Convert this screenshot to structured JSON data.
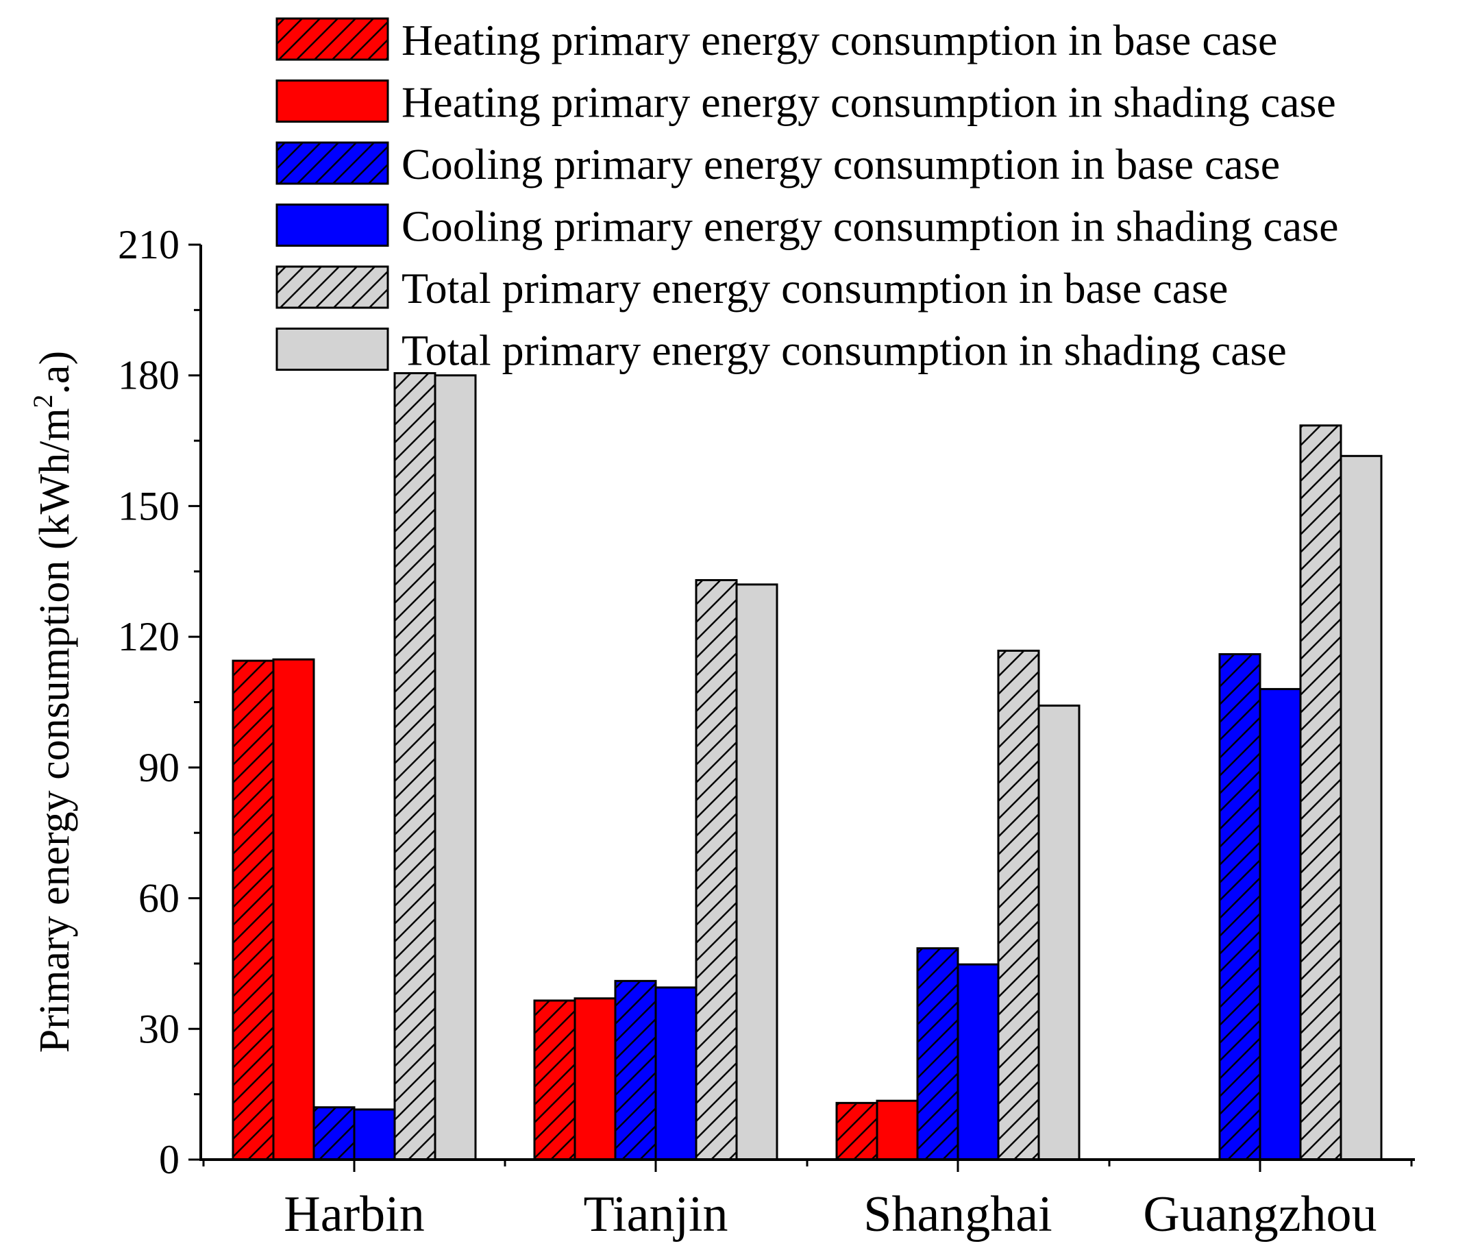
{
  "chart_data": {
    "type": "bar",
    "title": "",
    "xlabel": "",
    "ylabel": "Primary energy consumption (kWh/m",
    "ylabel_superscript": "2",
    "ylabel_suffix": ".a)",
    "ylim": [
      0,
      210
    ],
    "yticks": [
      0,
      30,
      60,
      90,
      120,
      150,
      180,
      210
    ],
    "categories": [
      "Harbin",
      "Tianjin",
      "Shanghai",
      "Guangzhou"
    ],
    "legend_position": "top-right",
    "series": [
      {
        "name": "Heating primary energy consumption in base case",
        "values": [
          114.5,
          36.5,
          13.0,
          0
        ],
        "color": "#ff0000",
        "hatch": true
      },
      {
        "name": "Heating primary energy consumption in shading case",
        "values": [
          114.8,
          37.0,
          13.5,
          0
        ],
        "color": "#ff0000",
        "hatch": false
      },
      {
        "name": "Cooling primary energy consumption in base case",
        "values": [
          12.0,
          41.0,
          48.5,
          116.0
        ],
        "color": "#0000ff",
        "hatch": true
      },
      {
        "name": "Cooling primary energy consumption in shading case",
        "values": [
          11.5,
          39.5,
          44.8,
          108.0
        ],
        "color": "#0000ff",
        "hatch": false
      },
      {
        "name": "Total primary energy consumption in base case",
        "values": [
          180.5,
          133.0,
          116.8,
          168.5
        ],
        "color": "#d3d3d3",
        "hatch": true
      },
      {
        "name": "Total primary energy consumption in shading case",
        "values": [
          180.0,
          132.0,
          104.2,
          161.5
        ],
        "color": "#d3d3d3",
        "hatch": false
      }
    ]
  }
}
